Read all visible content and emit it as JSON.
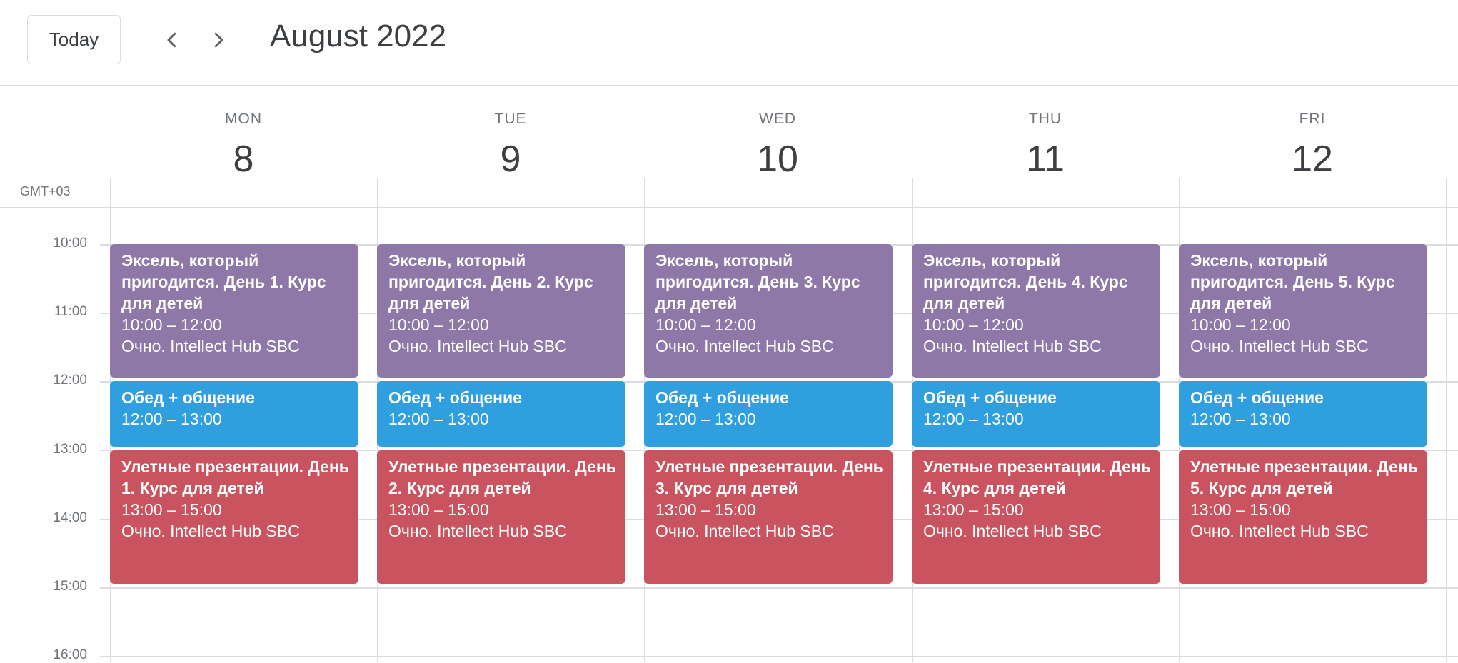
{
  "toolbar": {
    "today_label": "Today",
    "prev_icon": "chevron-left-icon",
    "next_icon": "chevron-right-icon",
    "month_title": "August 2022"
  },
  "timezone": "GMT+03",
  "days": [
    {
      "name": "MON",
      "num": "8"
    },
    {
      "name": "TUE",
      "num": "9"
    },
    {
      "name": "WED",
      "num": "10"
    },
    {
      "name": "THU",
      "num": "11"
    },
    {
      "name": "FRI",
      "num": "12"
    }
  ],
  "hours": [
    "10:00",
    "11:00",
    "12:00",
    "13:00",
    "14:00",
    "15:00",
    "16:00"
  ],
  "events": [
    {
      "day": 0,
      "color": "#8e78a8",
      "title": "Эксель, который пригодится. День 1. Курс для детей",
      "time": "10:00 – 12:00",
      "location": "Очно. Intellect Hub SBC"
    },
    {
      "day": 0,
      "color": "#2f9fe0",
      "title": "Обед + общение",
      "time": "12:00 – 13:00"
    },
    {
      "day": 0,
      "color": "#c9545f",
      "title": "Улетные презентации. День 1. Курс для детей",
      "time": "13:00 – 15:00",
      "location": "Очно. Intellect Hub SBC"
    },
    {
      "day": 1,
      "color": "#8e78a8",
      "title": "Эксель, который пригодится. День 2. Курс для детей",
      "time": "10:00 – 12:00",
      "location": "Очно. Intellect Hub SBC"
    },
    {
      "day": 1,
      "color": "#2f9fe0",
      "title": "Обед + общение",
      "time": "12:00 – 13:00"
    },
    {
      "day": 1,
      "color": "#c9545f",
      "title": "Улетные презентации. День 2. Курс для детей",
      "time": "13:00 – 15:00",
      "location": "Очно. Intellect Hub SBC"
    },
    {
      "day": 2,
      "color": "#8e78a8",
      "title": "Эксель, который пригодится. День 3. Курс для детей",
      "time": "10:00 – 12:00",
      "location": "Очно. Intellect Hub SBC"
    },
    {
      "day": 2,
      "color": "#2f9fe0",
      "title": "Обед + общение",
      "time": "12:00 – 13:00"
    },
    {
      "day": 2,
      "color": "#c9545f",
      "title": "Улетные презентации. День 3. Курс для детей",
      "time": "13:00 – 15:00",
      "location": "Очно. Intellect Hub SBC"
    },
    {
      "day": 3,
      "color": "#8e78a8",
      "title": "Эксель, который пригодится. День 4. Курс для детей",
      "time": "10:00 – 12:00",
      "location": "Очно. Intellect Hub SBC"
    },
    {
      "day": 3,
      "color": "#2f9fe0",
      "title": "Обед + общение",
      "time": "12:00 – 13:00"
    },
    {
      "day": 3,
      "color": "#c9545f",
      "title": "Улетные презентации. День 4. Курс для детей",
      "time": "13:00 – 15:00",
      "location": "Очно. Intellect Hub SBC"
    },
    {
      "day": 4,
      "color": "#8e78a8",
      "title": "Эксель, который пригодится. День 5. Курс для детей",
      "time": "10:00 – 12:00",
      "location": "Очно. Intellect Hub SBC"
    },
    {
      "day": 4,
      "color": "#2f9fe0",
      "title": "Обед + общение",
      "time": "12:00 – 13:00"
    },
    {
      "day": 4,
      "color": "#c9545f",
      "title": "Улетные презентации. День 5. Курс для детей",
      "time": "13:00 – 15:00",
      "location": "Очно. Intellect Hub SBC"
    }
  ]
}
